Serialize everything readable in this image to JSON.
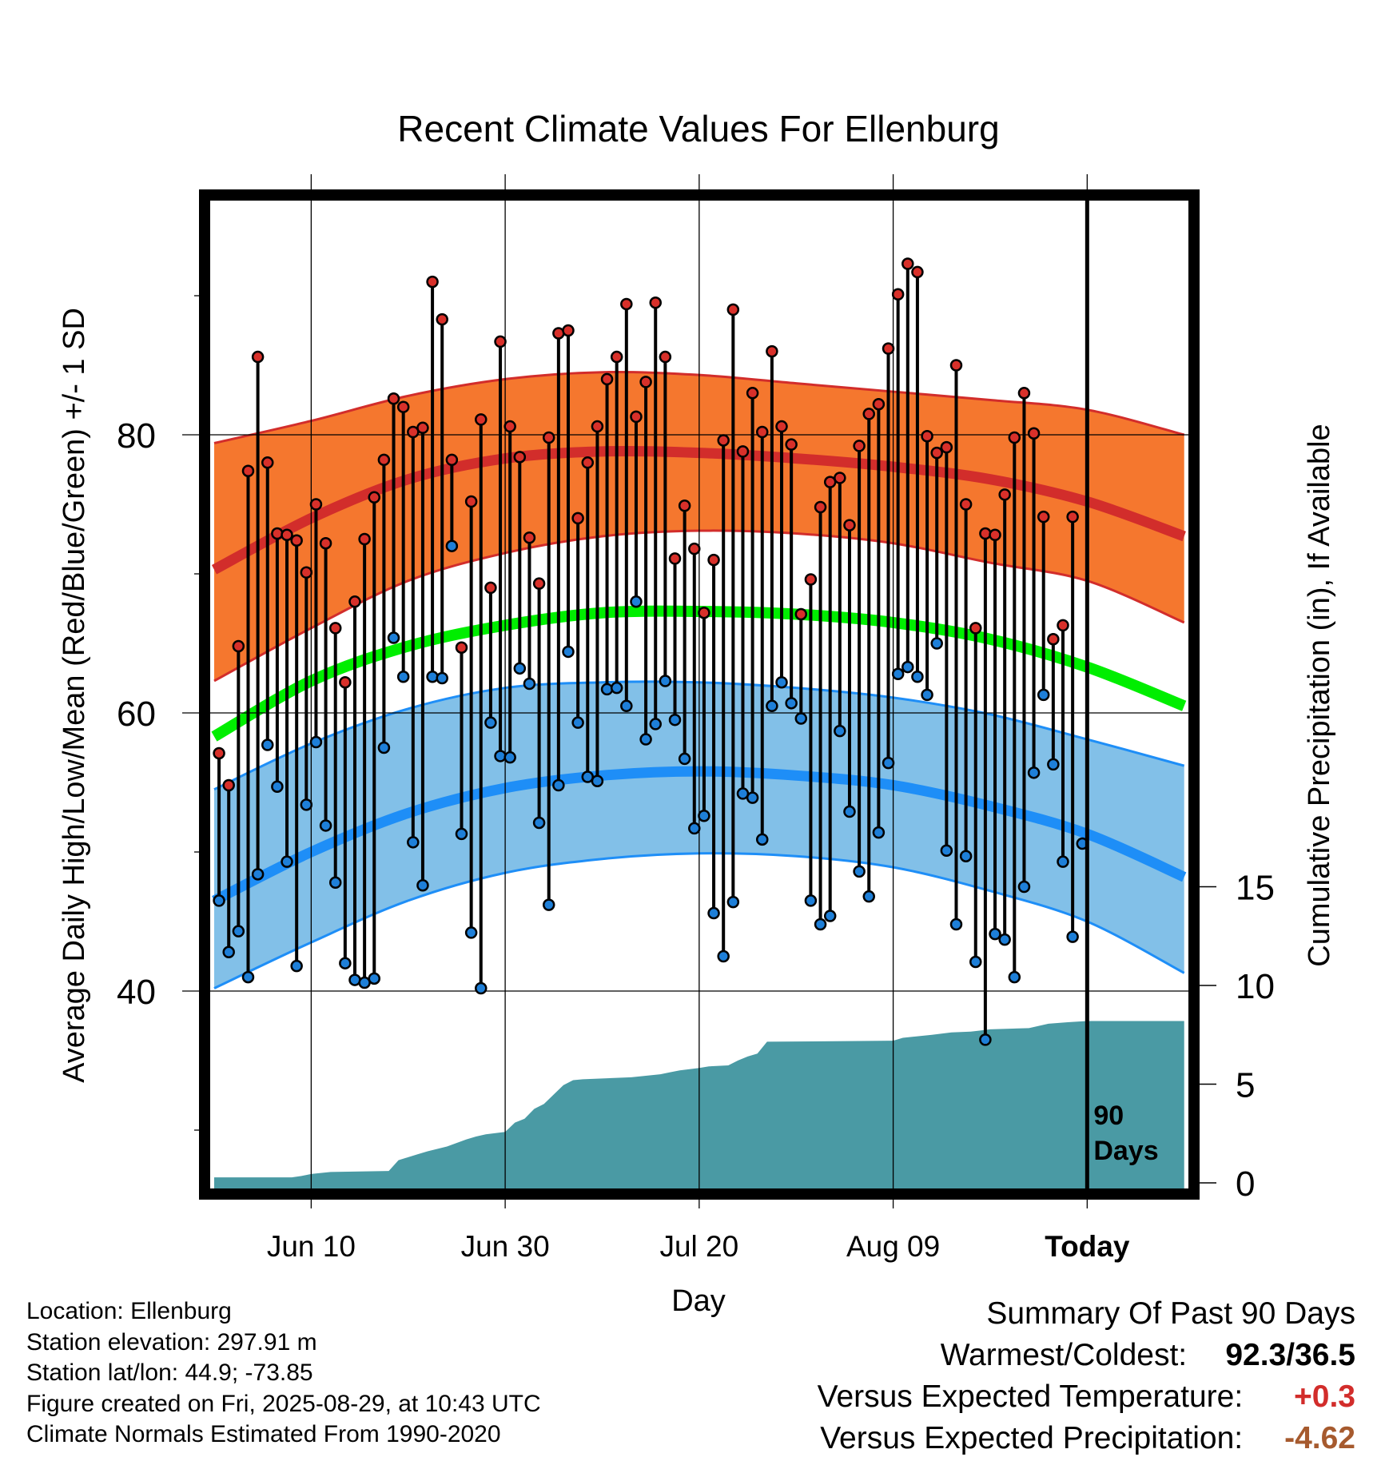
{
  "chart_data": {
    "type": "line",
    "title": "Recent Climate Values For Ellenburg",
    "xlabel": "Day",
    "ylabel": "Average Daily High/Low/Mean (Red/Blue/Green) +/- 1 SD",
    "y2label": "Cumulative Precipitation (in), If Available",
    "x_tick_labels": [
      "Jun 10",
      "Jun 30",
      "Jul 20",
      "Aug 09",
      "Today"
    ],
    "x_tick_days": [
      10,
      30,
      50,
      70,
      90
    ],
    "xlim": [
      0,
      100
    ],
    "ylim": [
      30,
      101.5
    ],
    "y_ticks": [
      40,
      60,
      80
    ],
    "y_minor_ticks": [
      30,
      50,
      70,
      90
    ],
    "y2lim": [
      0,
      15
    ],
    "y2_ticks": [
      0,
      5,
      10,
      15
    ],
    "grid": true,
    "today_marker": "90\nDays",
    "normal_high": {
      "days": [
        0,
        10,
        20,
        30,
        40,
        50,
        60,
        70,
        80,
        90,
        100
      ],
      "mean": [
        70.3,
        74.0,
        76.8,
        78.3,
        78.8,
        78.7,
        78.3,
        77.7,
        76.8,
        75.2,
        72.7
      ],
      "upper": [
        79.4,
        81.0,
        82.8,
        84.0,
        84.5,
        84.3,
        83.7,
        83.1,
        82.5,
        81.8,
        80.0
      ],
      "lower": [
        62.3,
        66.1,
        69.5,
        71.5,
        72.7,
        73.1,
        72.9,
        72.2,
        70.8,
        69.5,
        66.5
      ]
    },
    "normal_mean": {
      "days": [
        0,
        10,
        20,
        30,
        40,
        50,
        60,
        70,
        80,
        90,
        100
      ],
      "values": [
        58.3,
        62.3,
        64.8,
        66.3,
        67.2,
        67.3,
        67.1,
        66.5,
        65.3,
        63.3,
        60.5
      ]
    },
    "normal_low": {
      "days": [
        0,
        10,
        20,
        30,
        40,
        50,
        60,
        70,
        80,
        90,
        100
      ],
      "mean": [
        46.5,
        50.0,
        52.8,
        54.6,
        55.5,
        55.8,
        55.5,
        54.8,
        53.3,
        51.3,
        48.2
      ],
      "upper": [
        54.5,
        57.8,
        60.3,
        61.8,
        62.2,
        62.2,
        61.8,
        61.1,
        59.9,
        58.1,
        56.2
      ],
      "lower": [
        40.2,
        43.5,
        46.5,
        48.5,
        49.5,
        49.9,
        49.7,
        48.9,
        47.2,
        45.0,
        41.3
      ]
    },
    "daily_high": [
      57.1,
      54.8,
      64.8,
      77.4,
      85.6,
      78.0,
      72.9,
      72.8,
      72.4,
      70.1,
      75.0,
      72.2,
      66.1,
      62.2,
      68.0,
      72.5,
      75.5,
      78.2,
      82.6,
      82.0,
      80.2,
      80.5,
      91.0,
      88.3,
      78.2,
      64.7,
      75.2,
      81.1,
      69.0,
      86.7,
      80.6,
      78.4,
      72.6,
      69.3,
      79.8,
      87.3,
      87.5,
      74.0,
      78.0,
      80.6,
      84.0,
      85.6,
      89.4,
      81.3,
      83.8,
      89.5,
      85.6,
      71.1,
      74.9,
      71.8,
      67.2,
      71.0,
      79.6,
      89.0,
      78.8,
      83.0,
      80.2,
      86.0,
      80.6,
      79.3,
      67.1,
      69.6,
      74.8,
      76.6,
      76.9,
      73.5,
      79.2,
      81.5,
      82.2,
      86.2,
      90.1,
      92.3,
      91.7,
      79.9,
      78.7,
      79.1,
      85.0,
      75.0,
      66.1,
      72.9,
      72.8,
      75.7,
      79.8,
      83.0,
      80.1,
      74.1,
      65.3,
      66.3,
      74.1
    ],
    "daily_low": [
      46.5,
      42.8,
      44.3,
      41.0,
      48.4,
      57.7,
      54.7,
      49.3,
      41.8,
      53.4,
      57.9,
      51.9,
      47.8,
      42.0,
      40.8,
      40.6,
      40.9,
      57.5,
      65.4,
      62.6,
      50.7,
      47.6,
      62.6,
      62.5,
      72.0,
      51.3,
      44.2,
      40.2,
      59.3,
      56.9,
      56.8,
      63.2,
      62.1,
      52.1,
      46.2,
      54.8,
      64.4,
      59.3,
      55.4,
      55.1,
      61.7,
      61.8,
      60.5,
      68.0,
      58.1,
      59.2,
      62.3,
      59.5,
      56.7,
      51.7,
      52.6,
      45.6,
      42.5,
      46.4,
      54.2,
      53.9,
      50.9,
      60.5,
      62.2,
      60.7,
      59.6,
      46.5,
      44.8,
      45.4,
      58.7,
      52.9,
      48.6,
      46.8,
      51.4,
      56.4,
      62.8,
      63.3,
      62.6,
      61.3,
      65.0,
      50.1,
      44.8,
      49.7,
      42.1,
      36.5,
      44.1,
      43.7,
      41.0,
      47.5,
      55.7,
      61.3,
      56.3,
      49.3,
      43.9,
      50.6
    ],
    "cumulative_precip": {
      "days": [
        0,
        8,
        9,
        10,
        11,
        12,
        18,
        19,
        20,
        21,
        22,
        23,
        24,
        26,
        27,
        28,
        30,
        31,
        32,
        33,
        34,
        36,
        37,
        38,
        43,
        46,
        47,
        48,
        50,
        51,
        53,
        54,
        55,
        56,
        57,
        70,
        71,
        74,
        76,
        78,
        79,
        80,
        84,
        85,
        86,
        88,
        90,
        100
      ],
      "values": [
        0.28,
        0.28,
        0.35,
        0.45,
        0.5,
        0.55,
        0.6,
        1.15,
        1.3,
        1.45,
        1.6,
        1.72,
        1.84,
        2.2,
        2.35,
        2.46,
        2.58,
        3.05,
        3.25,
        3.75,
        4.0,
        4.95,
        5.2,
        5.25,
        5.35,
        5.5,
        5.6,
        5.7,
        5.82,
        5.9,
        5.95,
        6.2,
        6.4,
        6.55,
        7.15,
        7.2,
        7.35,
        7.5,
        7.62,
        7.66,
        7.72,
        7.78,
        7.84,
        7.95,
        8.06,
        8.14,
        8.2,
        8.2
      ]
    }
  },
  "footer": {
    "location": "Location: Ellenburg",
    "elevation": "Station elevation: 297.91 m",
    "latlon": "Station lat/lon: 44.9; -73.85",
    "created": "Figure created on Fri, 2025-08-29, at 10:43 UTC",
    "normals": "Climate Normals Estimated From 1990-2020"
  },
  "summary": {
    "heading": "Summary Of Past 90 Days",
    "warm_cold_label": "Warmest/Coldest:",
    "warm_cold_value": "92.3/36.5",
    "temp_label": "Versus Expected Temperature:",
    "temp_value": "+0.3",
    "precip_label": "Versus Expected Precipitation:",
    "precip_value": "-4.62"
  },
  "colors": {
    "high_band": "#f5772e",
    "high_line": "#d22d2b",
    "low_band": "#82c0e8",
    "low_line": "#1e8ef7",
    "mean_line": "#00ee00",
    "precip_fill": "#4a9aa4",
    "high_marker": "#d8302a",
    "low_marker": "#1e7fd8",
    "temp_anomaly": "#d22d2b",
    "precip_anomaly": "#a65a2e"
  }
}
